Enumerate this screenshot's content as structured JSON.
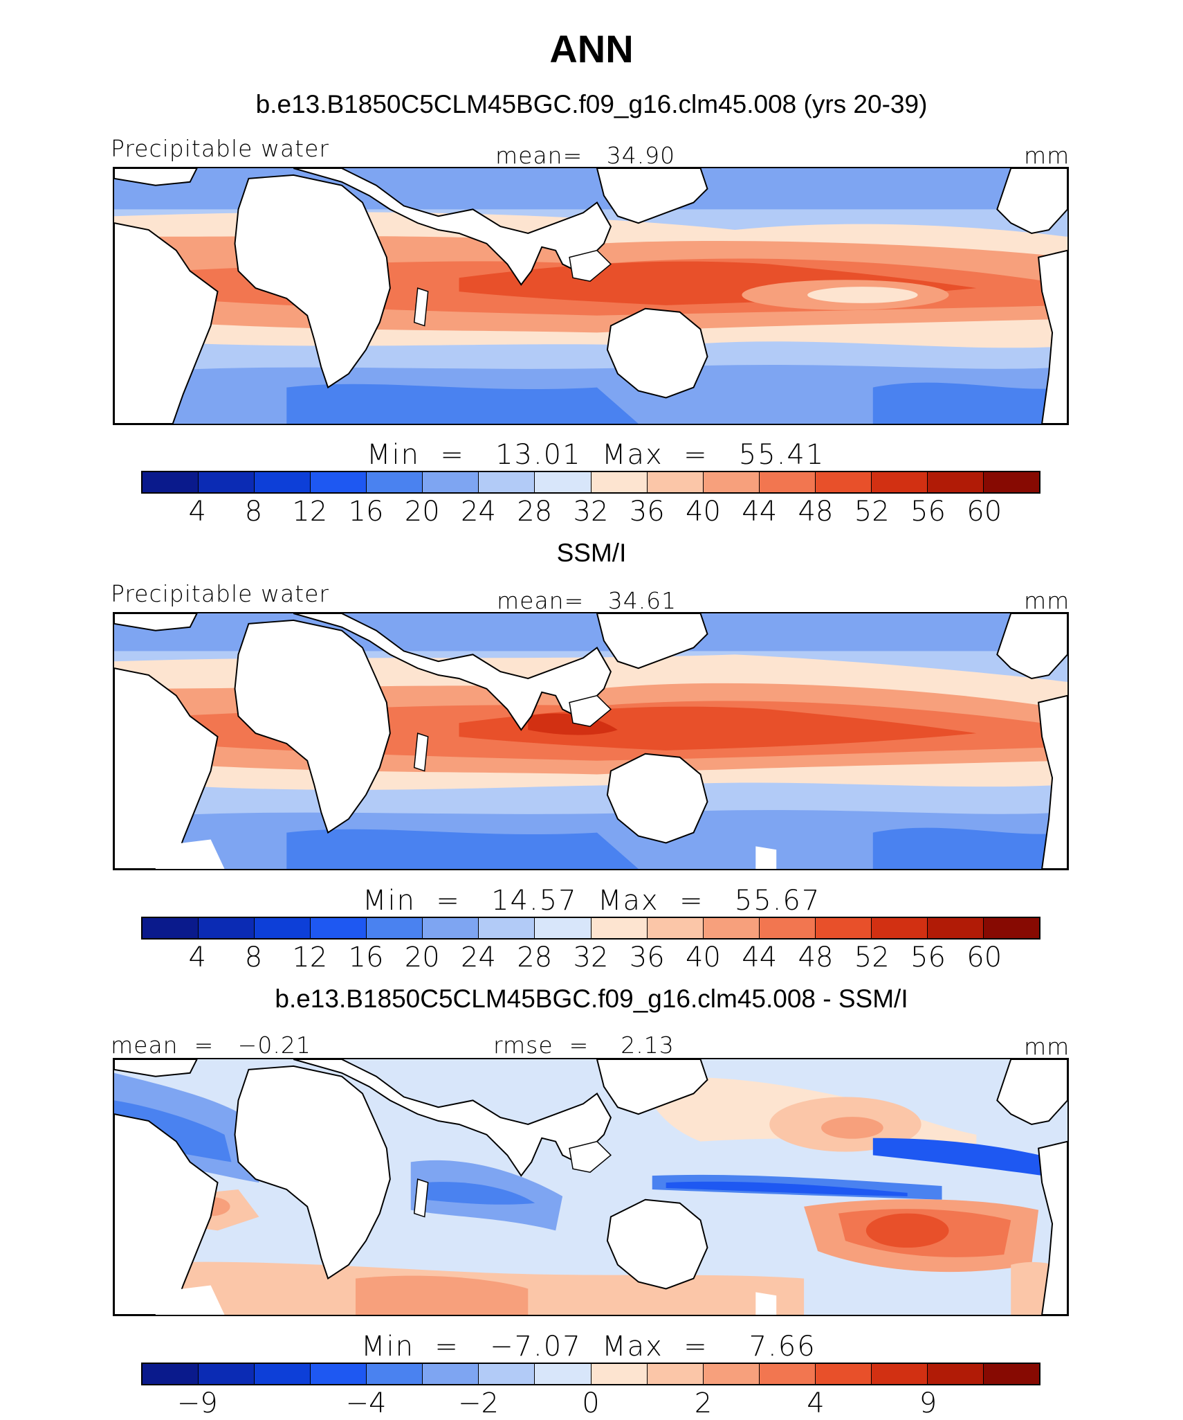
{
  "title": "ANN",
  "colors": {
    "sequential": [
      "#0a1a8c",
      "#0b2bb4",
      "#0d3fd8",
      "#1e58f2",
      "#4a82f0",
      "#7ea5f2",
      "#b2cbf7",
      "#d8e6fa",
      "#fde4d0",
      "#fbc6a8",
      "#f7a07c",
      "#f27650",
      "#e8502a",
      "#d23012",
      "#b11b06",
      "#870a02"
    ],
    "land": "#ffffff",
    "coast": "#000000"
  },
  "panels": [
    {
      "title": "b.e13.B1850C5CLM45BGC.f09_g16.clm45.008 (yrs 20-39)",
      "left_label": "Precipitable water",
      "center_label": "mean=   34.90",
      "right_label": "mm",
      "stats": "Min  =   13.01  Max  =   55.41",
      "ticks": [
        "4",
        "8",
        "12",
        "16",
        "20",
        "24",
        "28",
        "32",
        "36",
        "40",
        "44",
        "48",
        "52",
        "56",
        "60"
      ]
    },
    {
      "title": "SSM/I",
      "left_label": "Precipitable water",
      "center_label": "mean=   34.61",
      "right_label": "mm",
      "stats": "Min  =   14.57  Max  =   55.67",
      "ticks": [
        "4",
        "8",
        "12",
        "16",
        "20",
        "24",
        "28",
        "32",
        "36",
        "40",
        "44",
        "48",
        "52",
        "56",
        "60"
      ]
    },
    {
      "title": "b.e13.B1850C5CLM45BGC.f09_g16.clm45.008 - SSM/I",
      "left_label": "mean  =   −0.21",
      "center_label": "rmse  =    2.13",
      "right_label": "mm",
      "stats": "Min  =   −7.07  Max  =    7.66",
      "ticks": [
        "−9",
        "−4",
        "−2",
        "0",
        "2",
        "4",
        "9"
      ]
    }
  ]
}
